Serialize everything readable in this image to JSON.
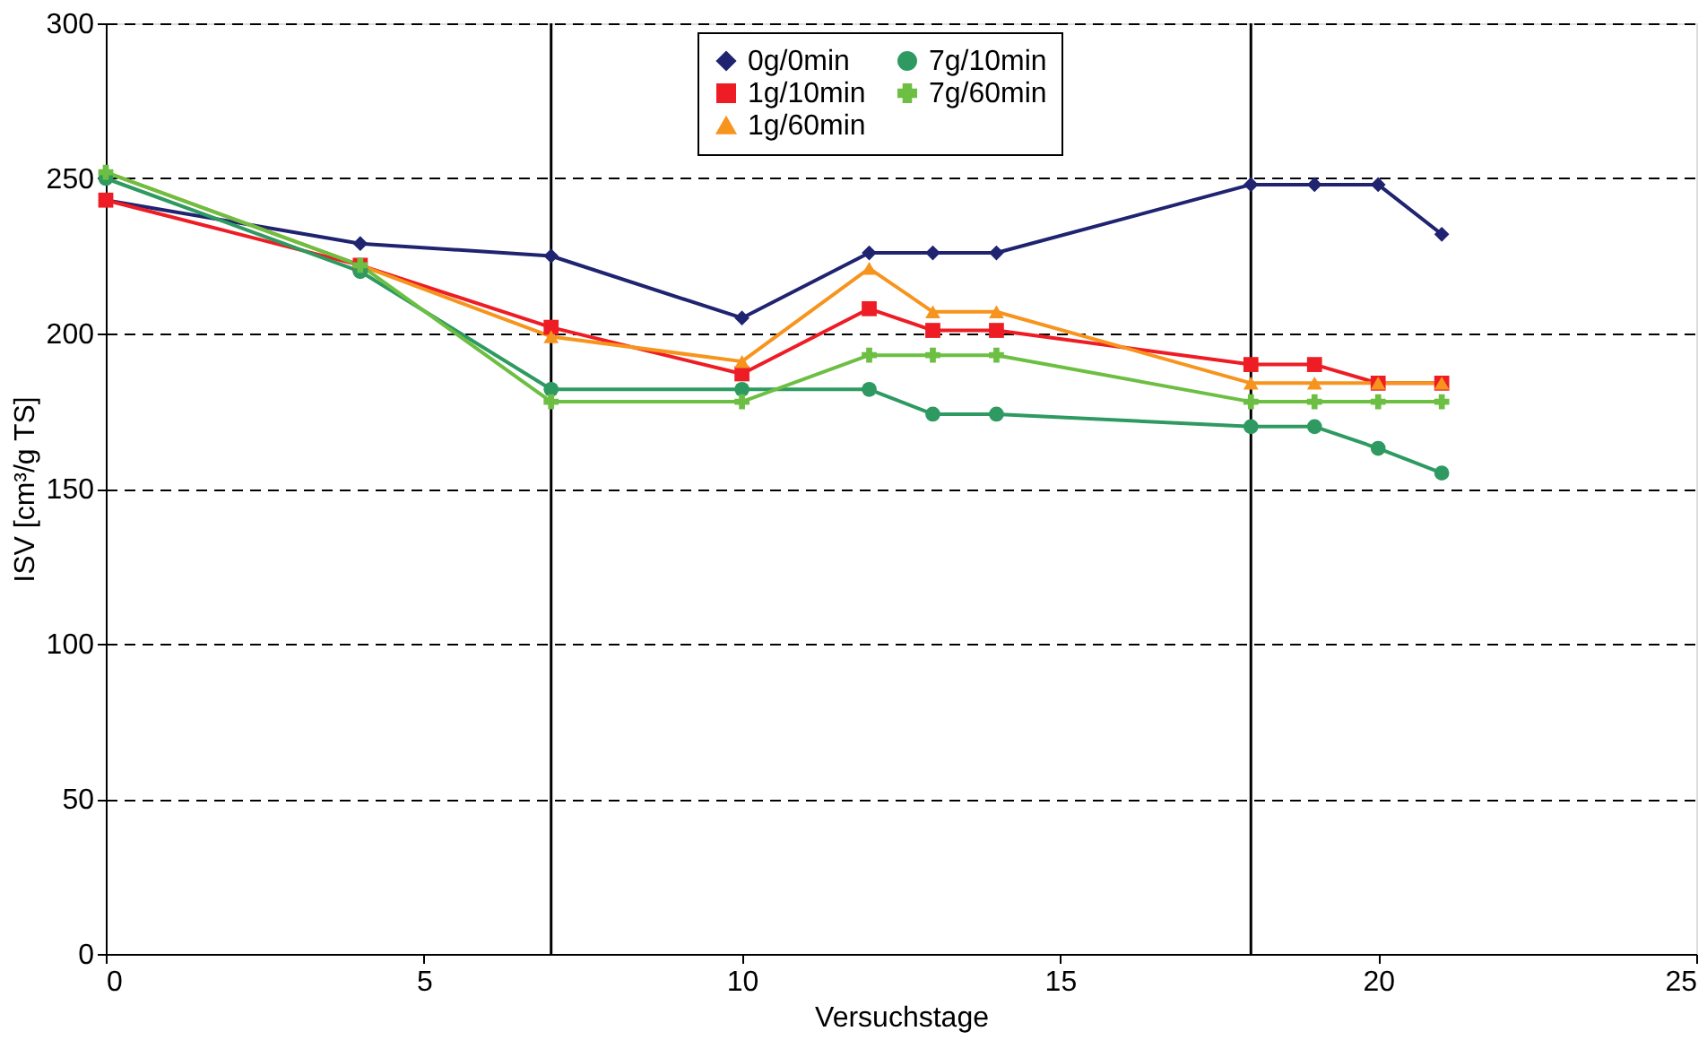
{
  "chart_data": {
    "type": "line",
    "xlabel": "Versuchstage",
    "ylabel": "ISV [cm³/g TS]",
    "xlim": [
      0,
      25
    ],
    "xticks": [
      0,
      5,
      10,
      15,
      20,
      25
    ],
    "ylim": [
      0,
      300
    ],
    "yticks": [
      0,
      50,
      100,
      150,
      200,
      250,
      300
    ],
    "grid": "y",
    "legend": "top",
    "ref_lines": [
      {
        "axis": "x",
        "value": 7,
        "color": "#000000"
      },
      {
        "axis": "x",
        "value": 18,
        "color": "#000000"
      }
    ],
    "series": [
      {
        "name": "0g/0min",
        "color": "#1f2370",
        "marker": "diamond",
        "x": [
          0,
          4,
          7,
          10,
          12,
          13,
          14,
          18,
          19,
          20,
          21
        ],
        "values": [
          243,
          229,
          225,
          205,
          226,
          226,
          226,
          248,
          248,
          248,
          232
        ]
      },
      {
        "name": "1g/10min",
        "color": "#ee1c24",
        "marker": "square",
        "x": [
          0,
          4,
          7,
          10,
          12,
          13,
          14,
          18,
          19,
          20,
          21
        ],
        "values": [
          243,
          222,
          202,
          187,
          208,
          201,
          201,
          190,
          190,
          184,
          184
        ]
      },
      {
        "name": "1g/60min",
        "color": "#f7941d",
        "marker": "triangle",
        "x": [
          0,
          4,
          7,
          10,
          12,
          13,
          14,
          18,
          19,
          20,
          21
        ],
        "values": [
          252,
          222,
          199,
          191,
          221,
          207,
          207,
          184,
          184,
          184,
          184
        ]
      },
      {
        "name": "7g/10min",
        "color": "#2e9a61",
        "marker": "circle",
        "x": [
          0,
          4,
          7,
          10,
          12,
          13,
          14,
          18,
          19,
          20,
          21
        ],
        "values": [
          250,
          220,
          182,
          182,
          182,
          174,
          174,
          170,
          170,
          163,
          155
        ]
      },
      {
        "name": "7g/60min",
        "color": "#6cbf43",
        "marker": "cross",
        "x": [
          0,
          4,
          7,
          10,
          12,
          13,
          14,
          18,
          19,
          20,
          21
        ],
        "values": [
          252,
          222,
          178,
          178,
          193,
          193,
          193,
          178,
          178,
          178,
          178
        ]
      }
    ]
  }
}
